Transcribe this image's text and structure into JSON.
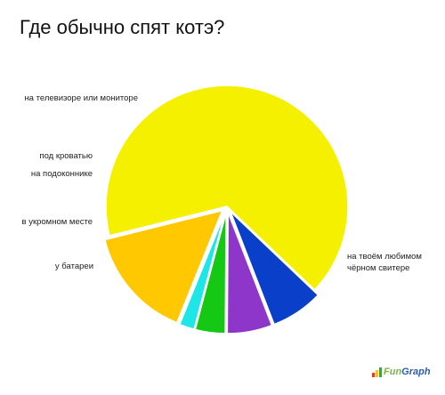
{
  "title": "Где обычно спят котэ?",
  "brand": {
    "part1": "Fun",
    "part2": "Graph",
    "icon": "bar-chart-icon"
  },
  "colors": {
    "background": "#ffffff",
    "outline": "#ffffff"
  },
  "chart_data": {
    "type": "pie",
    "title": "Где обычно спят котэ?",
    "legend": "labels beside slices",
    "slices": [
      {
        "label": [
          "на твоём любимом",
          "чёрном свитере"
        ],
        "value": 66,
        "color": "#f5f000",
        "exploded": false
      },
      {
        "label": [
          "у батареи"
        ],
        "value": 7,
        "color": "#0a3fc9",
        "exploded": true
      },
      {
        "label": [
          "в укромном месте"
        ],
        "value": 6,
        "color": "#8e36c9",
        "exploded": true
      },
      {
        "label": [
          "на подоконнике"
        ],
        "value": 4,
        "color": "#14c814",
        "exploded": true
      },
      {
        "label": [
          "под кроватью"
        ],
        "value": 2,
        "color": "#1ee6e6",
        "exploded": true
      },
      {
        "label": [
          "на телевизоре или мониторе"
        ],
        "value": 15,
        "color": "#ffc800",
        "exploded": true
      }
    ]
  }
}
